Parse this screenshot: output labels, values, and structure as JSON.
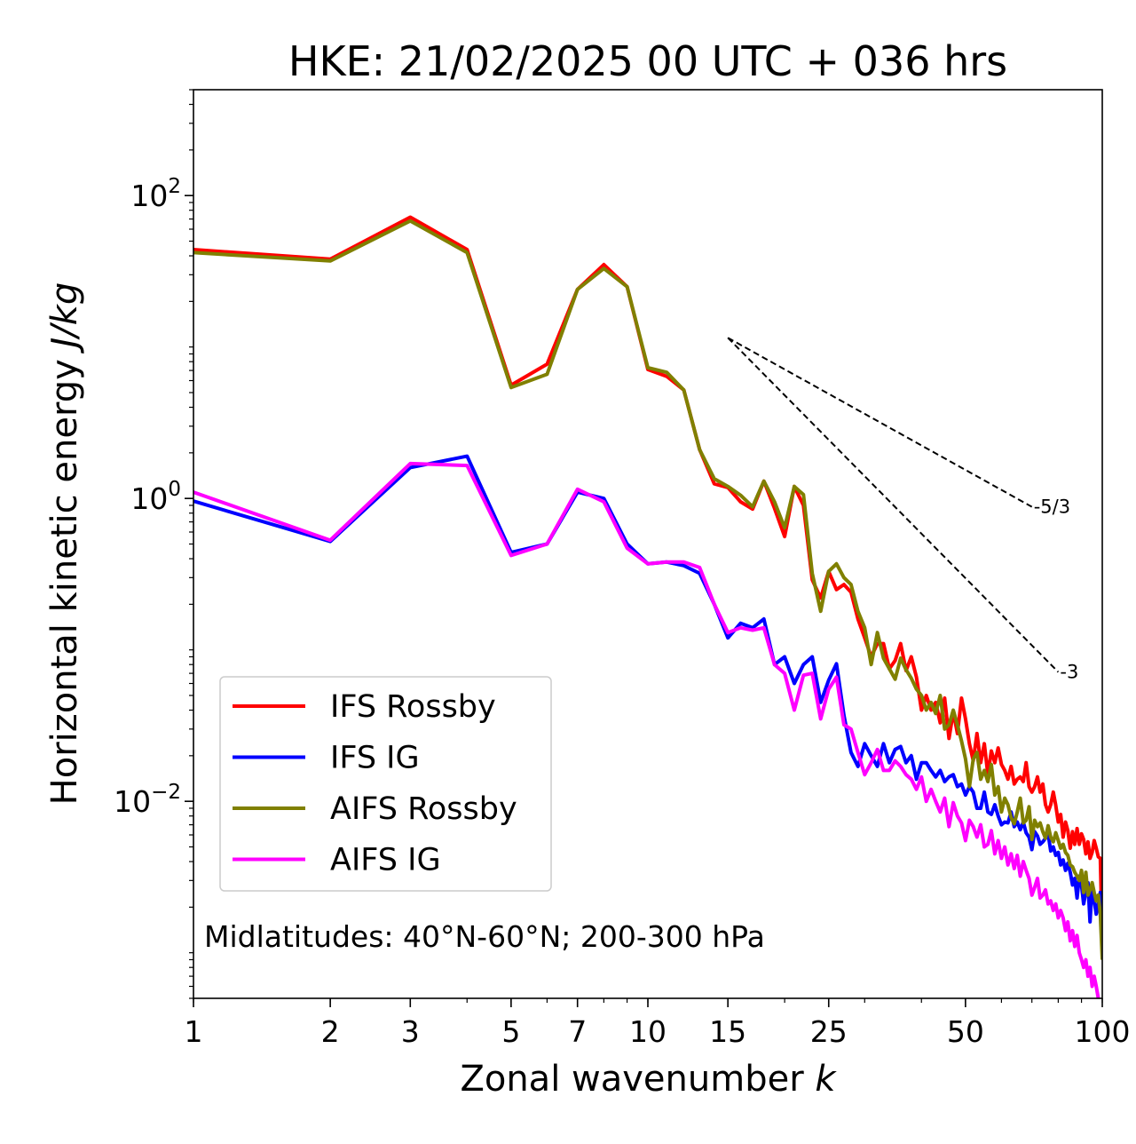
{
  "chart_data": {
    "type": "line",
    "title": "HKE: 21/02/2025 00 UTC + 036 hrs",
    "xlabel": "Zonal wavenumber k",
    "ylabel": "Horizontal kinetic energy J/kg",
    "xscale": "log",
    "yscale": "log",
    "xlim": [
      1,
      100
    ],
    "ylim": [
      0.0005,
      500
    ],
    "x_ticks": [
      1,
      2,
      3,
      5,
      7,
      10,
      15,
      25,
      50,
      100
    ],
    "x_tick_labels": [
      "1",
      "2",
      "3",
      "5",
      "7",
      "10",
      "15",
      "25",
      "50",
      "100"
    ],
    "y_ticks": [
      {
        "value": 0.01,
        "base": "10",
        "exp": "−2"
      },
      {
        "value": 1,
        "base": "10",
        "exp": "0"
      },
      {
        "value": 100,
        "base": "10",
        "exp": "2"
      }
    ],
    "annotation": "Midlatitudes: 40°N-60°N; 200-300 hPa",
    "legend_position": "lower-left",
    "grid": false,
    "reference_slopes": [
      {
        "label": "-5/3",
        "x": [
          15,
          70
        ],
        "y": [
          11.5,
          0.88
        ]
      },
      {
        "label": "-3",
        "x": [
          15,
          80
        ],
        "y": [
          11.5,
          0.0714
        ]
      }
    ],
    "series": [
      {
        "name": "IFS Rossby",
        "color": "#ff0000",
        "x": [
          1,
          2,
          3,
          4,
          5,
          6,
          7,
          8,
          9,
          10,
          11,
          12,
          13,
          14,
          15,
          16,
          17,
          18,
          19,
          20,
          21,
          22,
          23,
          24,
          25,
          26,
          27,
          28,
          29,
          30,
          31,
          32,
          33,
          34,
          35,
          36,
          37,
          38,
          39,
          40,
          41,
          42,
          43,
          44,
          45,
          46,
          47,
          48,
          49,
          50,
          51,
          52,
          53,
          54,
          55,
          56,
          57,
          58,
          59,
          60,
          61,
          62,
          63,
          64,
          65,
          66,
          67,
          68,
          69,
          70,
          71,
          72,
          73,
          74,
          75,
          76,
          77,
          78,
          79,
          80,
          81,
          82,
          83,
          84,
          85,
          86,
          87,
          88,
          89,
          90,
          91,
          92,
          93,
          94,
          95,
          96,
          97,
          98,
          99,
          100
        ],
        "y": [
          44,
          38,
          72,
          44,
          5.6,
          7.7,
          24,
          35,
          25,
          7.1,
          6.4,
          5.2,
          2.1,
          1.25,
          1.18,
          0.95,
          0.85,
          1.3,
          0.86,
          0.56,
          1.2,
          0.9,
          0.29,
          0.22,
          0.33,
          0.25,
          0.27,
          0.24,
          0.16,
          0.12,
          0.09,
          0.11,
          0.11,
          0.075,
          0.085,
          0.11,
          0.073,
          0.09,
          0.066,
          0.04,
          0.05,
          0.04,
          0.045,
          0.033,
          0.048,
          0.026,
          0.039,
          0.028,
          0.048,
          0.035,
          0.024,
          0.0185,
          0.028,
          0.018,
          0.024,
          0.015,
          0.0215,
          0.018,
          0.0225,
          0.0175,
          0.016,
          0.014,
          0.017,
          0.013,
          0.014,
          0.0145,
          0.0135,
          0.018,
          0.0125,
          0.0115,
          0.0125,
          0.0145,
          0.0115,
          0.013,
          0.0095,
          0.0085,
          0.0095,
          0.0115,
          0.0094,
          0.0073,
          0.0082,
          0.0058,
          0.0073,
          0.0064,
          0.0049,
          0.0063,
          0.0052,
          0.0066,
          0.0052,
          0.0061,
          0.0056,
          0.0045,
          0.0054,
          0.0042,
          0.0046,
          0.0055,
          0.0049,
          0.0043,
          0.0042,
          0.0012
        ]
      },
      {
        "name": "IFS IG",
        "color": "#0000ff",
        "x": [
          1,
          2,
          3,
          4,
          5,
          6,
          7,
          8,
          9,
          10,
          11,
          12,
          13,
          14,
          15,
          16,
          17,
          18,
          19,
          20,
          21,
          22,
          23,
          24,
          25,
          26,
          27,
          28,
          29,
          30,
          31,
          32,
          33,
          34,
          35,
          36,
          37,
          38,
          39,
          40,
          41,
          42,
          43,
          44,
          45,
          46,
          47,
          48,
          49,
          50,
          51,
          52,
          53,
          54,
          55,
          56,
          57,
          58,
          59,
          60,
          61,
          62,
          63,
          64,
          65,
          66,
          67,
          68,
          69,
          70,
          71,
          72,
          73,
          74,
          75,
          76,
          77,
          78,
          79,
          80,
          81,
          82,
          83,
          84,
          85,
          86,
          87,
          88,
          89,
          90,
          91,
          92,
          93,
          94,
          95,
          96,
          97,
          98,
          99,
          100
        ],
        "y": [
          0.96,
          0.52,
          1.6,
          1.9,
          0.44,
          0.5,
          1.1,
          1.0,
          0.5,
          0.37,
          0.38,
          0.36,
          0.32,
          0.2,
          0.12,
          0.15,
          0.14,
          0.16,
          0.08,
          0.09,
          0.06,
          0.08,
          0.09,
          0.045,
          0.063,
          0.081,
          0.037,
          0.021,
          0.017,
          0.024,
          0.02,
          0.017,
          0.024,
          0.018,
          0.022,
          0.023,
          0.018,
          0.02,
          0.014,
          0.018,
          0.018,
          0.016,
          0.0145,
          0.016,
          0.0135,
          0.0145,
          0.015,
          0.0125,
          0.013,
          0.011,
          0.0125,
          0.0115,
          0.009,
          0.009,
          0.0115,
          0.0085,
          0.0082,
          0.0095,
          0.008,
          0.007,
          0.0073,
          0.0072,
          0.0085,
          0.0068,
          0.0073,
          0.0065,
          0.0073,
          0.0062,
          0.0058,
          0.0048,
          0.0063,
          0.0059,
          0.0052,
          0.0054,
          0.0057,
          0.0061,
          0.0047,
          0.005,
          0.0044,
          0.0046,
          0.0038,
          0.0041,
          0.0035,
          0.0039,
          0.0034,
          0.0028,
          0.0031,
          0.0023,
          0.0032,
          0.0028,
          0.0021,
          0.0025,
          0.0029,
          0.0016,
          0.0028,
          0.0022,
          0.0018,
          0.0021,
          0.0025,
          0.0018
        ]
      },
      {
        "name": "AIFS Rossby",
        "color": "#808000",
        "x": [
          1,
          2,
          3,
          4,
          5,
          6,
          7,
          8,
          9,
          10,
          11,
          12,
          13,
          14,
          15,
          16,
          17,
          18,
          19,
          20,
          21,
          22,
          23,
          24,
          25,
          26,
          27,
          28,
          29,
          30,
          31,
          32,
          33,
          34,
          35,
          36,
          37,
          38,
          39,
          40,
          41,
          42,
          43,
          44,
          45,
          46,
          47,
          48,
          49,
          50,
          51,
          52,
          53,
          54,
          55,
          56,
          57,
          58,
          59,
          60,
          61,
          62,
          63,
          64,
          65,
          66,
          67,
          68,
          69,
          70,
          71,
          72,
          73,
          74,
          75,
          76,
          77,
          78,
          79,
          80,
          81,
          82,
          83,
          84,
          85,
          86,
          87,
          88,
          89,
          90,
          91,
          92,
          93,
          94,
          95,
          96,
          97,
          98,
          99,
          100
        ],
        "y": [
          42,
          37,
          68,
          42,
          5.4,
          6.6,
          24,
          33,
          25,
          7.3,
          6.8,
          5.2,
          2.1,
          1.35,
          1.2,
          1.05,
          0.88,
          1.3,
          0.95,
          0.64,
          1.2,
          1.06,
          0.32,
          0.18,
          0.33,
          0.37,
          0.3,
          0.27,
          0.18,
          0.14,
          0.08,
          0.13,
          0.088,
          0.075,
          0.064,
          0.088,
          0.074,
          0.065,
          0.055,
          0.05,
          0.04,
          0.045,
          0.038,
          0.05,
          0.03,
          0.032,
          0.04,
          0.032,
          0.025,
          0.019,
          0.0125,
          0.019,
          0.021,
          0.014,
          0.016,
          0.0135,
          0.0175,
          0.011,
          0.0125,
          0.0085,
          0.0105,
          0.0095,
          0.0078,
          0.0071,
          0.0085,
          0.0105,
          0.0072,
          0.0075,
          0.0092,
          0.0056,
          0.0075,
          0.0068,
          0.0072,
          0.0063,
          0.0057,
          0.0069,
          0.0058,
          0.0054,
          0.0062,
          0.0055,
          0.0049,
          0.0052,
          0.0046,
          0.0044,
          0.0038,
          0.0037,
          0.0034,
          0.0032,
          0.003,
          0.0035,
          0.0025,
          0.0034,
          0.0024,
          0.0026,
          0.0029,
          0.0025,
          0.0022,
          0.0024,
          0.0018,
          0.0009
        ]
      },
      {
        "name": "AIFS IG",
        "color": "#ff00ff",
        "x": [
          1,
          2,
          3,
          4,
          5,
          6,
          7,
          8,
          9,
          10,
          11,
          12,
          13,
          14,
          15,
          16,
          17,
          18,
          19,
          20,
          21,
          22,
          23,
          24,
          25,
          26,
          27,
          28,
          29,
          30,
          31,
          32,
          33,
          34,
          35,
          36,
          37,
          38,
          39,
          40,
          41,
          42,
          43,
          44,
          45,
          46,
          47,
          48,
          49,
          50,
          51,
          52,
          53,
          54,
          55,
          56,
          57,
          58,
          59,
          60,
          61,
          62,
          63,
          64,
          65,
          66,
          67,
          68,
          69,
          70,
          71,
          72,
          73,
          74,
          75,
          76,
          77,
          78,
          79,
          80,
          81,
          82,
          83,
          84,
          85,
          86,
          87,
          88,
          89,
          90,
          91,
          92,
          93,
          94,
          95,
          96,
          97,
          98,
          99,
          100
        ],
        "y": [
          1.1,
          0.53,
          1.7,
          1.65,
          0.42,
          0.5,
          1.15,
          0.95,
          0.47,
          0.37,
          0.38,
          0.38,
          0.35,
          0.2,
          0.13,
          0.14,
          0.135,
          0.14,
          0.08,
          0.07,
          0.04,
          0.068,
          0.07,
          0.035,
          0.055,
          0.066,
          0.032,
          0.03,
          0.021,
          0.015,
          0.018,
          0.022,
          0.016,
          0.016,
          0.0185,
          0.017,
          0.015,
          0.014,
          0.012,
          0.0145,
          0.01,
          0.012,
          0.01,
          0.0085,
          0.0105,
          0.0068,
          0.0098,
          0.008,
          0.0072,
          0.0055,
          0.0075,
          0.0068,
          0.0058,
          0.007,
          0.005,
          0.0052,
          0.0064,
          0.0045,
          0.0055,
          0.0042,
          0.005,
          0.0038,
          0.0045,
          0.0036,
          0.0044,
          0.0032,
          0.004,
          0.0035,
          0.0031,
          0.0024,
          0.0027,
          0.0031,
          0.0023,
          0.0024,
          0.0026,
          0.0021,
          0.0022,
          0.0019,
          0.0021,
          0.0017,
          0.0019,
          0.0017,
          0.0014,
          0.0016,
          0.0012,
          0.0014,
          0.0011,
          0.0013,
          0.001,
          0.0009,
          0.0008,
          0.0009,
          0.0007,
          0.0008,
          0.0006,
          0.0007,
          0.0006,
          0.0005,
          0.0004,
          0.0003
        ]
      }
    ]
  }
}
